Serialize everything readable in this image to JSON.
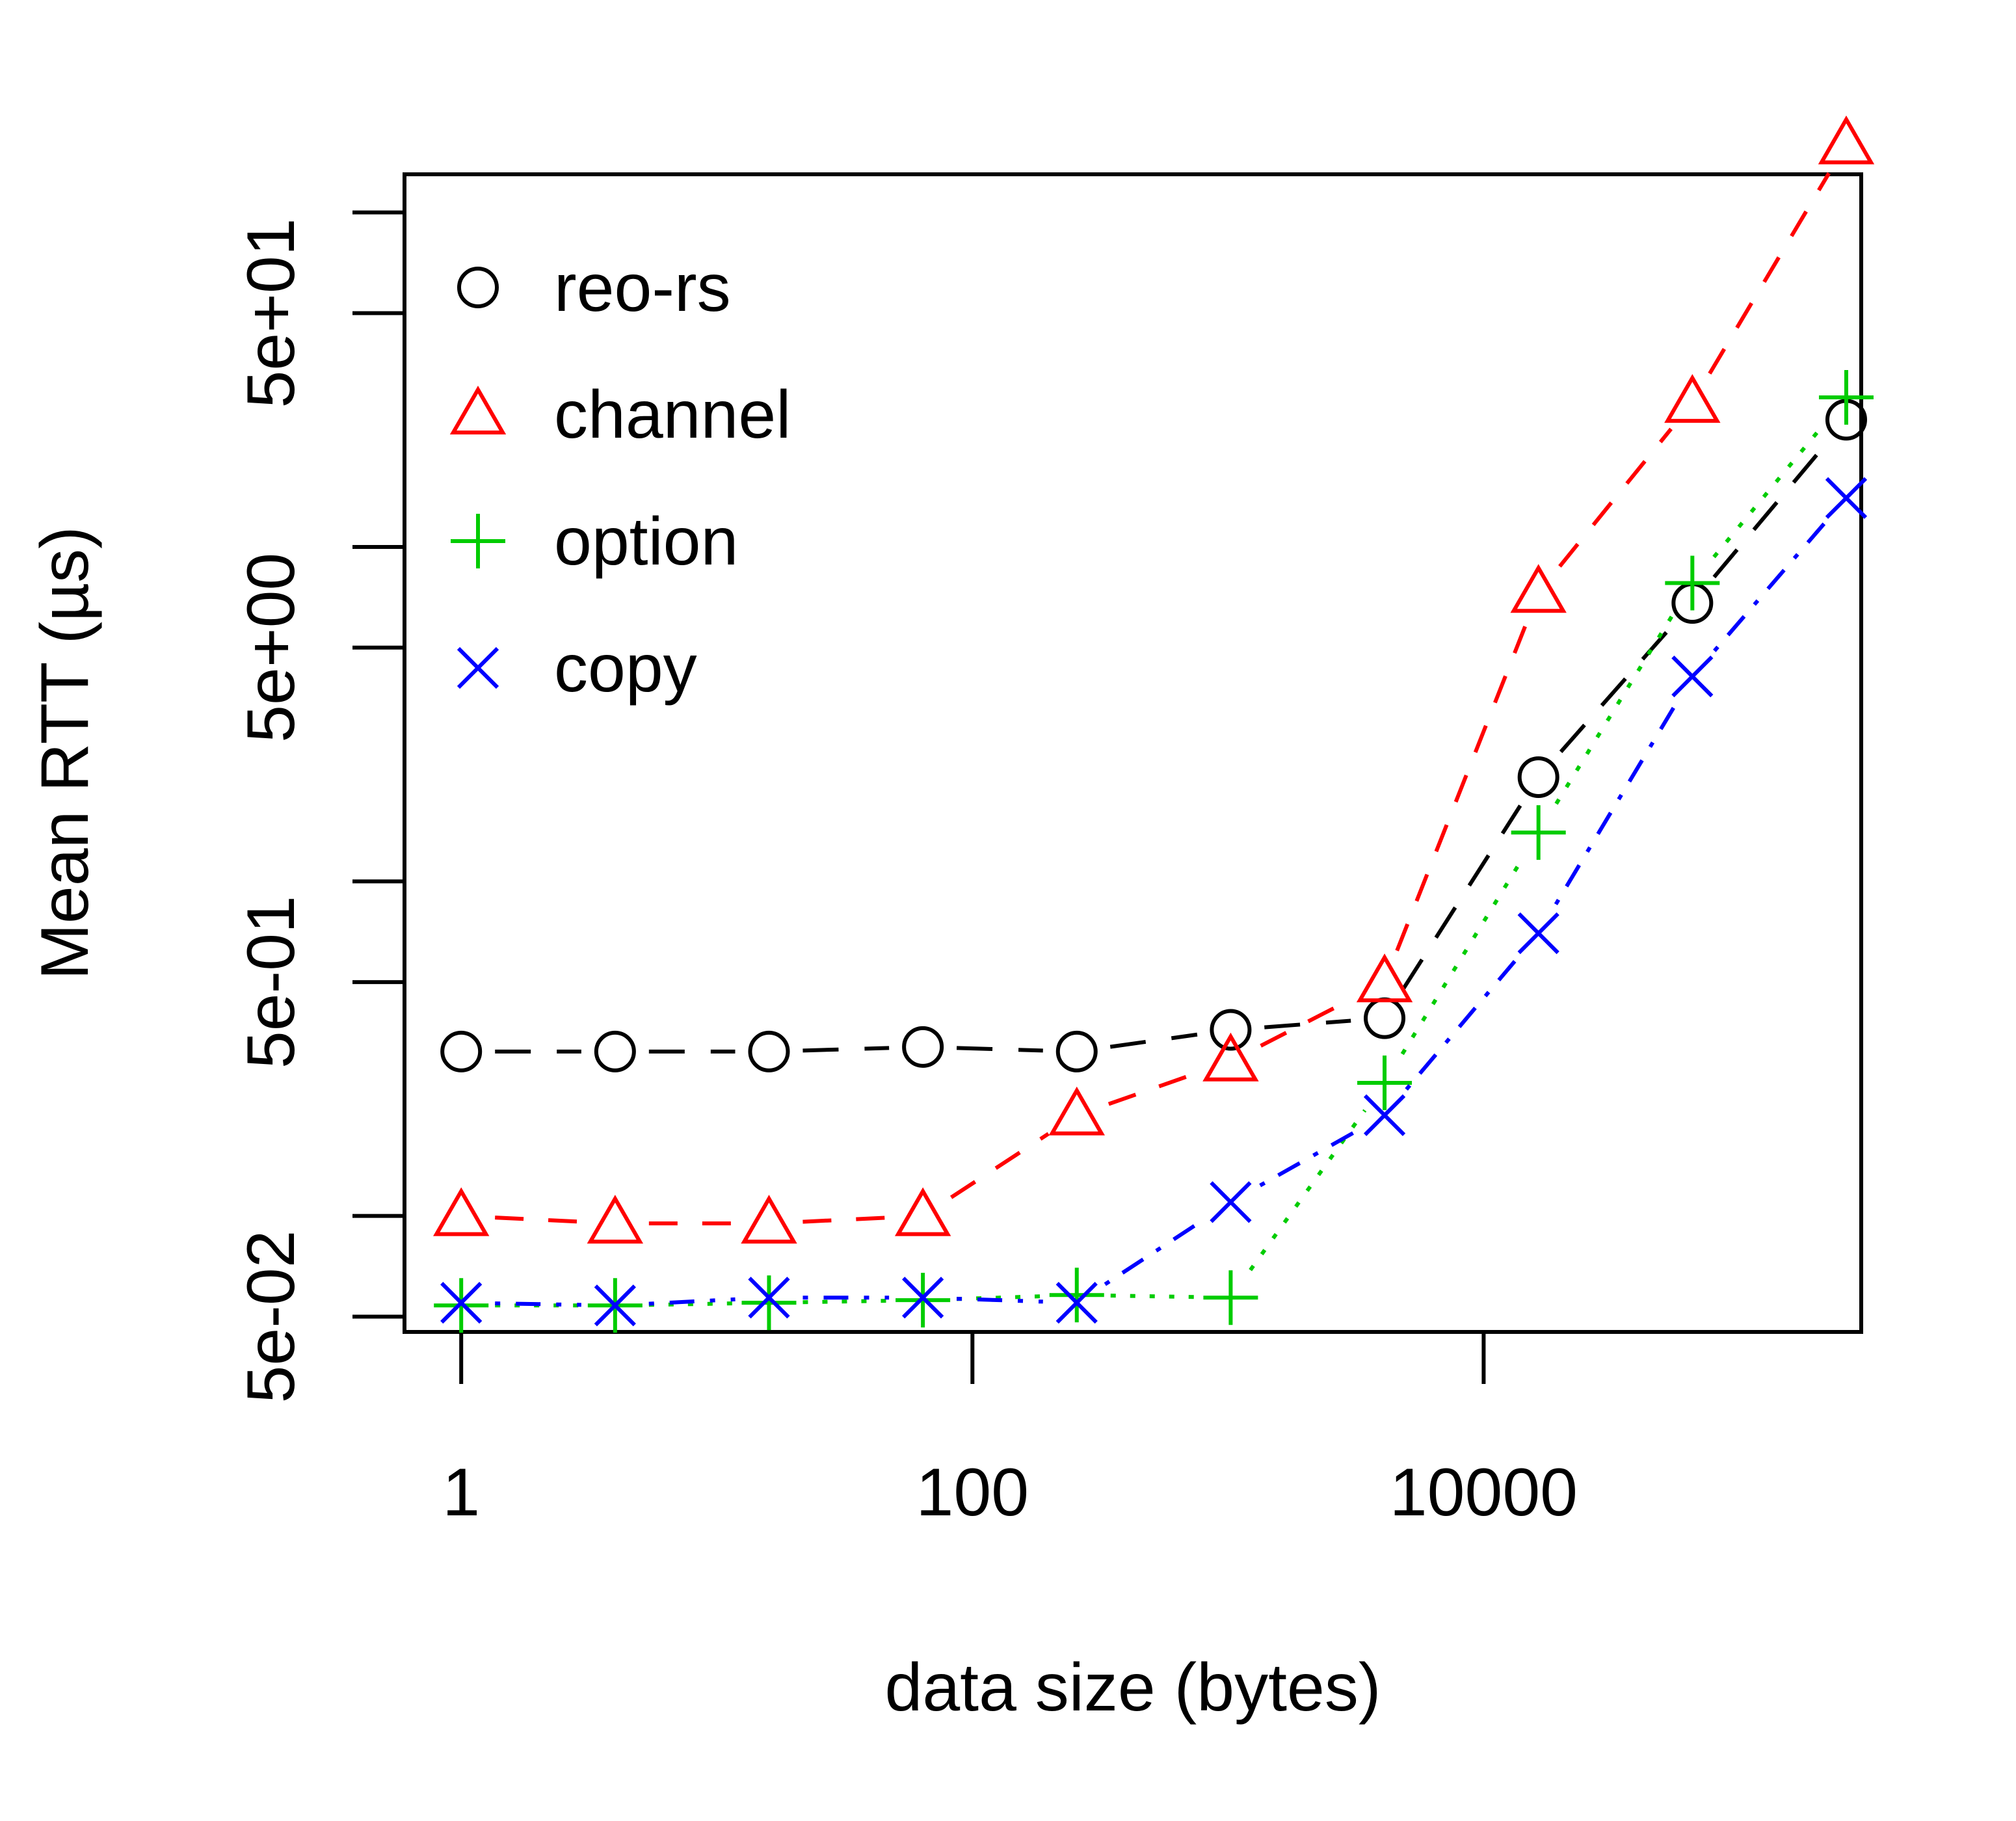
{
  "chart_data": {
    "type": "line",
    "title": "",
    "xlabel": "data size (bytes)",
    "ylabel": "Mean RTT (µs)",
    "xscale": "log",
    "yscale": "log",
    "x_ticks": [
      {
        "value": 1,
        "label": "1"
      },
      {
        "value": 100,
        "label": "100"
      },
      {
        "value": 10000,
        "label": "10000"
      }
    ],
    "y_ticks": [
      {
        "value": 0.05,
        "label": "5e-02"
      },
      {
        "value": 0.5,
        "label": "5e-01"
      },
      {
        "value": 5,
        "label": "5e+00"
      },
      {
        "value": 50,
        "label": "5e+01"
      }
    ],
    "y_minor_ticks": [
      0.1,
      1,
      10,
      100
    ],
    "xlim": [
      0.6,
      300000
    ],
    "ylim": [
      0.045,
      130
    ],
    "grid": false,
    "legend_position": "top-left",
    "x": [
      1,
      4,
      16,
      64,
      256,
      1024,
      4096,
      16384,
      65536,
      262144
    ],
    "series": [
      {
        "name": "reo-rs",
        "color": "#000000",
        "marker": "circle",
        "dash": "long-dash",
        "values": [
          0.31,
          0.31,
          0.31,
          0.32,
          0.31,
          0.36,
          0.39,
          2.05,
          6.8,
          24
        ]
      },
      {
        "name": "channel",
        "color": "#ff0000",
        "marker": "triangle",
        "dash": "dashed",
        "values": [
          0.1,
          0.095,
          0.095,
          0.1,
          0.2,
          0.29,
          0.5,
          7.3,
          27,
          160
        ]
      },
      {
        "name": "option",
        "color": "#00cc00",
        "marker": "plus",
        "dash": "dotted",
        "values": [
          0.054,
          0.054,
          0.055,
          0.056,
          0.058,
          0.057,
          0.25,
          1.4,
          7.8,
          28
        ]
      },
      {
        "name": "copy",
        "color": "#0000ff",
        "marker": "cross",
        "dash": "dot-dash",
        "values": [
          0.055,
          0.054,
          0.057,
          0.057,
          0.055,
          0.11,
          0.2,
          0.7,
          4.1,
          14
        ]
      }
    ]
  }
}
